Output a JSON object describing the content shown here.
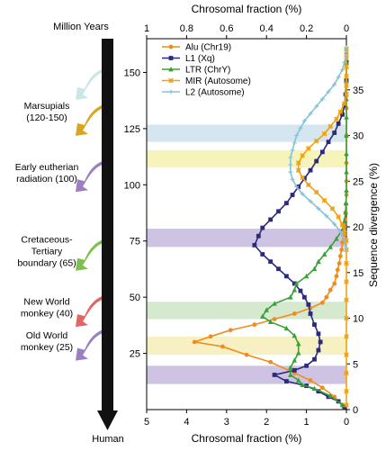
{
  "chart_data": {
    "type": "line",
    "timeline": {
      "title": "Million Years",
      "end_label": "Human",
      "events": [
        {
          "label": [
            "Marsupials",
            "(120-150)"
          ],
          "color": "#c9e7e6",
          "age": 141,
          "second_color": "#d9a520",
          "age2": 125
        },
        {
          "label": [
            "Early eutherian",
            "radiation (100)"
          ],
          "color": "#9b7fc1",
          "age": 100
        },
        {
          "label": [
            "Cretaceous-",
            "Tertiary",
            "boundary (65)"
          ],
          "color": "#7fbf4d",
          "age": 65
        },
        {
          "label": [
            "New World",
            "monkey (40)"
          ],
          "color": "#e46464",
          "age": 40
        },
        {
          "label": [
            "Old World",
            "monkey (25)"
          ],
          "color": "#9b7fc1",
          "age": 25
        }
      ]
    },
    "left_axis": {
      "label": "Million Years",
      "ticks": [
        150,
        125,
        100,
        75,
        50,
        25
      ],
      "range": [
        0,
        165
      ]
    },
    "right_axis": {
      "label": "Sequence divergence (%)",
      "ticks": [
        0,
        5,
        10,
        15,
        20,
        25,
        30,
        35
      ],
      "range": [
        0,
        40.6
      ]
    },
    "top_axis": {
      "label": "Chrosomal fraction (%)",
      "ticks": [
        "1",
        "0.8",
        "0.6",
        "0.4",
        "0.2",
        "0"
      ],
      "range": [
        1,
        0
      ]
    },
    "bottom_axis": {
      "label": "Chrosomal fraction (%)",
      "ticks": [
        "5",
        "4",
        "3",
        "2",
        "1",
        "0"
      ],
      "range": [
        5,
        0
      ]
    },
    "bands": [
      {
        "from": 29.3,
        "to": 31.2,
        "color": "#d2e3ee"
      },
      {
        "from": 26.5,
        "to": 28.4,
        "color": "#f6f3b4"
      },
      {
        "from": 17.8,
        "to": 19.8,
        "color": "#c9bde0"
      },
      {
        "from": 9.9,
        "to": 11.8,
        "color": "#cfe7c8"
      },
      {
        "from": 6.0,
        "to": 8.0,
        "color": "#f6eebb"
      },
      {
        "from": 2.8,
        "to": 4.8,
        "color": "#c9bde0"
      }
    ],
    "series": [
      {
        "name": "Alu (Chr19)",
        "color": "#f08c1f",
        "marker": "circle",
        "axis": "bottom",
        "points": [
          [
            0.1,
            0.5
          ],
          [
            0.3,
            1.4
          ],
          [
            0.6,
            2.4
          ],
          [
            0.9,
            3.2
          ],
          [
            1.3,
            4.0
          ],
          [
            1.9,
            5.2
          ],
          [
            2.5,
            6.0
          ],
          [
            3.1,
            6.9
          ],
          [
            3.8,
            7.4
          ],
          [
            3.4,
            8.0
          ],
          [
            2.9,
            8.7
          ],
          [
            2.3,
            9.3
          ],
          [
            1.8,
            9.9
          ],
          [
            1.3,
            10.5
          ],
          [
            0.9,
            11.1
          ],
          [
            0.6,
            11.7
          ],
          [
            0.5,
            12.3
          ],
          [
            0.4,
            13.1
          ],
          [
            0.3,
            13.8
          ],
          [
            0.25,
            14.6
          ],
          [
            0.22,
            15.3
          ],
          [
            0.18,
            16.0
          ],
          [
            0.15,
            16.8
          ],
          [
            0.12,
            17.5
          ],
          [
            0.1,
            18.3
          ],
          [
            0.08,
            19.1
          ],
          [
            0.05,
            20.0
          ],
          [
            0.03,
            20.8
          ],
          [
            0.02,
            21.6
          ],
          [
            0.01,
            22.5
          ],
          [
            0.0,
            23.5
          ],
          [
            0.0,
            25.0
          ],
          [
            0.0,
            27.0
          ],
          [
            0.0,
            30.0
          ],
          [
            0.0,
            33.0
          ],
          [
            0.0,
            36.0
          ],
          [
            0.0,
            39.0
          ]
        ]
      },
      {
        "name": "L1 (Xq)",
        "color": "#2b2a7c",
        "marker": "square",
        "axis": "bottom",
        "points": [
          [
            0.05,
            0.3
          ],
          [
            0.2,
            0.9
          ],
          [
            0.45,
            1.4
          ],
          [
            0.7,
            2.0
          ],
          [
            1.0,
            2.6
          ],
          [
            1.5,
            3.1
          ],
          [
            1.8,
            3.8
          ],
          [
            1.3,
            4.3
          ],
          [
            1.0,
            4.8
          ],
          [
            0.8,
            5.5
          ],
          [
            0.7,
            6.5
          ],
          [
            0.65,
            7.4
          ],
          [
            0.7,
            8.3
          ],
          [
            0.8,
            9.3
          ],
          [
            0.9,
            10.5
          ],
          [
            0.95,
            11.5
          ],
          [
            1.05,
            12.3
          ],
          [
            1.15,
            13.0
          ],
          [
            1.3,
            13.8
          ],
          [
            1.5,
            14.6
          ],
          [
            1.7,
            15.4
          ],
          [
            1.9,
            16.2
          ],
          [
            2.1,
            17.0
          ],
          [
            2.3,
            18.0
          ],
          [
            2.2,
            19.0
          ],
          [
            2.1,
            19.9
          ],
          [
            1.9,
            20.8
          ],
          [
            1.7,
            21.7
          ],
          [
            1.5,
            22.6
          ],
          [
            1.35,
            23.5
          ],
          [
            1.2,
            24.4
          ],
          [
            1.05,
            25.3
          ],
          [
            0.9,
            26.2
          ],
          [
            0.75,
            27.2
          ],
          [
            0.6,
            28.2
          ],
          [
            0.45,
            29.3
          ],
          [
            0.3,
            30.3
          ],
          [
            0.2,
            31.3
          ],
          [
            0.1,
            32.3
          ],
          [
            0.05,
            33.3
          ],
          [
            0.02,
            34.5
          ],
          [
            0.0,
            36.0
          ],
          [
            0.0,
            38.0
          ]
        ]
      },
      {
        "name": "LTR (ChrY)",
        "color": "#3aa038",
        "marker": "triangle",
        "axis": "bottom",
        "points": [
          [
            0.1,
            0.5
          ],
          [
            0.4,
            1.5
          ],
          [
            0.8,
            2.3
          ],
          [
            1.1,
            2.7
          ],
          [
            1.2,
            3.2
          ],
          [
            1.4,
            3.8
          ],
          [
            1.4,
            4.6
          ],
          [
            1.3,
            5.4
          ],
          [
            1.2,
            6.2
          ],
          [
            1.2,
            7.2
          ],
          [
            1.3,
            8.1
          ],
          [
            1.5,
            8.9
          ],
          [
            1.9,
            9.6
          ],
          [
            2.1,
            10.2
          ],
          [
            2.0,
            10.9
          ],
          [
            1.8,
            11.6
          ],
          [
            1.4,
            12.3
          ],
          [
            1.3,
            13.1
          ],
          [
            1.25,
            13.8
          ],
          [
            1.0,
            14.6
          ],
          [
            0.8,
            15.4
          ],
          [
            0.7,
            16.2
          ],
          [
            0.55,
            17.0
          ],
          [
            0.4,
            17.8
          ],
          [
            0.25,
            18.7
          ],
          [
            0.1,
            19.7
          ],
          [
            0.05,
            20.6
          ],
          [
            0.02,
            21.6
          ],
          [
            0.01,
            22.6
          ],
          [
            0.0,
            24.0
          ],
          [
            0.0,
            26.0
          ],
          [
            0.0,
            28.0
          ],
          [
            0.0,
            30.0
          ],
          [
            0.0,
            32.0
          ],
          [
            0.0,
            34.0
          ],
          [
            0.0,
            36.0
          ],
          [
            0.0,
            38.0
          ],
          [
            0.0,
            39.5
          ]
        ]
      },
      {
        "name": "MIR (Autosome)",
        "color": "#f0a10f",
        "marker": "star",
        "axis": "top",
        "points": [
          [
            0.0,
            0.5
          ],
          [
            0.0,
            2.0
          ],
          [
            0.0,
            4.0
          ],
          [
            0.0,
            6.0
          ],
          [
            0.0,
            8.0
          ],
          [
            0.0,
            10.0
          ],
          [
            0.0,
            12.0
          ],
          [
            0.0,
            14.0
          ],
          [
            0.0,
            16.0
          ],
          [
            0.0,
            17.5
          ],
          [
            0.0,
            18.5
          ],
          [
            0.01,
            19.3
          ],
          [
            0.02,
            20.2
          ],
          [
            0.04,
            21.1
          ],
          [
            0.07,
            22.0
          ],
          [
            0.11,
            22.9
          ],
          [
            0.15,
            23.8
          ],
          [
            0.19,
            24.6
          ],
          [
            0.22,
            25.4
          ],
          [
            0.24,
            26.2
          ],
          [
            0.24,
            27.0
          ],
          [
            0.22,
            27.8
          ],
          [
            0.19,
            28.6
          ],
          [
            0.15,
            29.4
          ],
          [
            0.11,
            30.2
          ],
          [
            0.08,
            31.0
          ],
          [
            0.05,
            31.8
          ],
          [
            0.03,
            32.6
          ],
          [
            0.01,
            33.5
          ],
          [
            0.0,
            34.5
          ],
          [
            0.0,
            35.5
          ],
          [
            0.0,
            36.5
          ],
          [
            0.0,
            37.5
          ],
          [
            0.0,
            38.5
          ],
          [
            0.0,
            39.5
          ]
        ]
      },
      {
        "name": "L2 (Autosome)",
        "color": "#87c3d8",
        "marker": "plus",
        "axis": "top",
        "points": [
          [
            0.0,
            17.5
          ],
          [
            0.01,
            18.5
          ],
          [
            0.03,
            19.5
          ],
          [
            0.06,
            20.3
          ],
          [
            0.1,
            21.2
          ],
          [
            0.14,
            22.0
          ],
          [
            0.18,
            22.8
          ],
          [
            0.22,
            23.6
          ],
          [
            0.25,
            24.4
          ],
          [
            0.27,
            25.2
          ],
          [
            0.28,
            26.0
          ],
          [
            0.28,
            26.8
          ],
          [
            0.28,
            27.6
          ],
          [
            0.27,
            28.4
          ],
          [
            0.26,
            29.2
          ],
          [
            0.25,
            30.0
          ],
          [
            0.23,
            30.8
          ],
          [
            0.21,
            31.6
          ],
          [
            0.18,
            32.4
          ],
          [
            0.15,
            33.2
          ],
          [
            0.12,
            34.0
          ],
          [
            0.09,
            34.8
          ],
          [
            0.06,
            35.6
          ],
          [
            0.04,
            36.4
          ],
          [
            0.02,
            37.2
          ],
          [
            0.01,
            38.0
          ],
          [
            0.0,
            38.8
          ],
          [
            0.0,
            39.6
          ]
        ]
      }
    ]
  }
}
